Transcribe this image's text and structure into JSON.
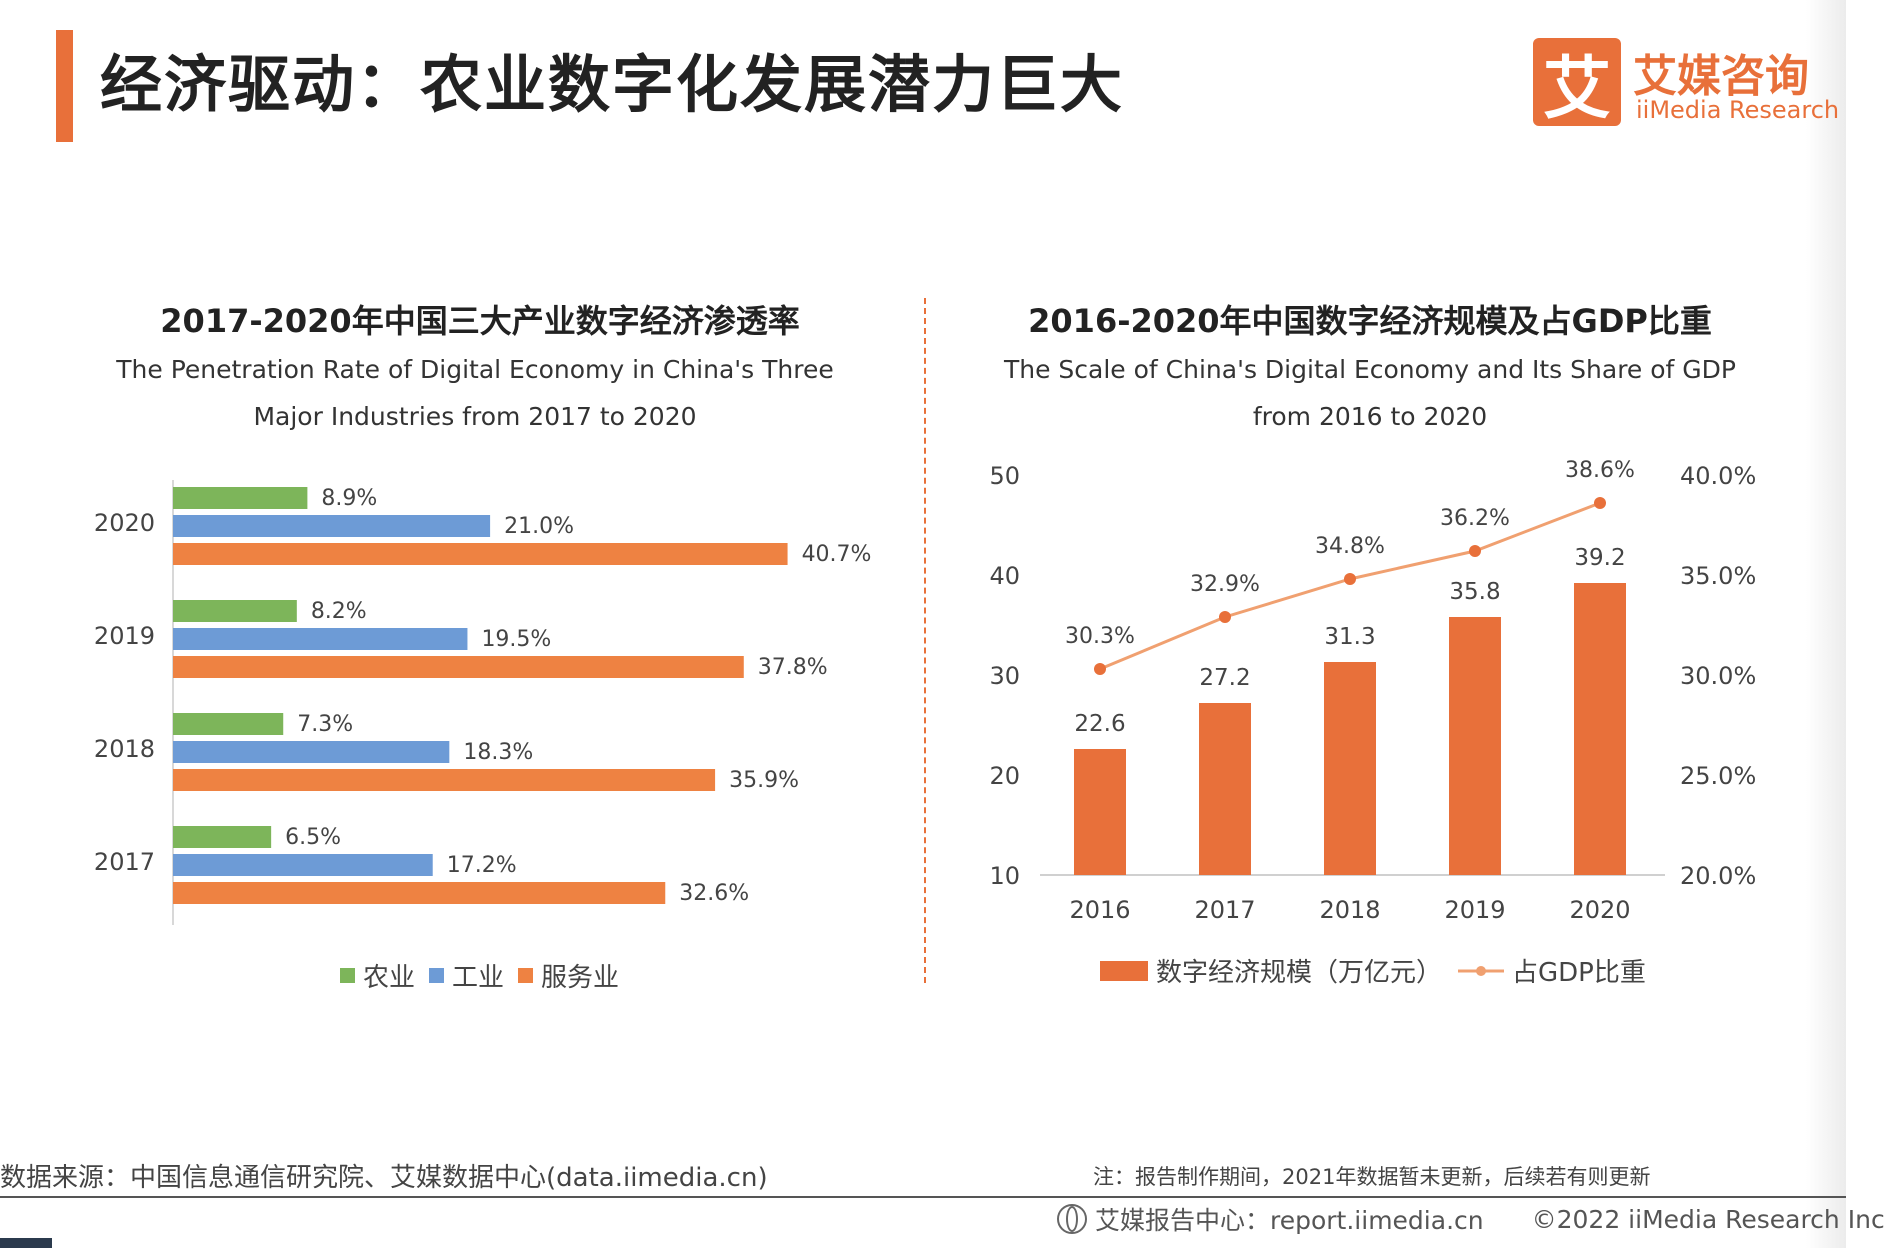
{
  "header": {
    "title": "经济驱动：农业数字化发展潜力巨大",
    "logo_mark": "艾",
    "logo_cn": "艾媒咨询",
    "logo_en": "iiMedia Research",
    "accent": "#e8703a"
  },
  "chart_data": [
    {
      "type": "bar",
      "orientation": "horizontal",
      "title": "2017-2020年中国三大产业数字经济渗透率",
      "subtitle": "The Penetration Rate of Digital Economy in China's Three Major Industries from 2017 to 2020",
      "categories": [
        "2020",
        "2019",
        "2018",
        "2017"
      ],
      "series": [
        {
          "name": "农业",
          "color": "#7db55a",
          "values": [
            8.9,
            8.2,
            7.3,
            6.5
          ],
          "labels": [
            "8.9%",
            "8.2%",
            "7.3%",
            "6.5%"
          ]
        },
        {
          "name": "工业",
          "color": "#6d9bd6",
          "values": [
            21.0,
            19.5,
            18.3,
            17.2
          ],
          "labels": [
            "21.0%",
            "19.5%",
            "18.3%",
            "17.2%"
          ]
        },
        {
          "name": "服务业",
          "color": "#ee8242",
          "values": [
            40.7,
            37.8,
            35.9,
            32.6
          ],
          "labels": [
            "40.7%",
            "37.8%",
            "35.9%",
            "32.6%"
          ]
        }
      ],
      "legend": "bottom"
    },
    {
      "type": "bar+line",
      "title": "2016-2020年中国数字经济规模及占GDP比重",
      "subtitle": "The Scale of China's Digital Economy and Its Share of GDP from 2016 to 2020",
      "categories": [
        "2016",
        "2017",
        "2018",
        "2019",
        "2020"
      ],
      "series": [
        {
          "name": "数字经济规模（万亿元）",
          "type": "bar",
          "color": "#e8703a",
          "values": [
            22.6,
            27.2,
            31.3,
            35.8,
            39.2
          ],
          "labels": [
            "22.6",
            "27.2",
            "31.3",
            "35.8",
            "39.2"
          ]
        },
        {
          "name": "占GDP比重",
          "type": "line",
          "color": "#f0a070",
          "values": [
            30.3,
            32.9,
            34.8,
            36.2,
            38.6
          ],
          "labels": [
            "30.3%",
            "32.9%",
            "34.8%",
            "36.2%",
            "38.6%"
          ]
        }
      ],
      "y_left": {
        "min": 10,
        "max": 50,
        "ticks": [
          "10",
          "20",
          "30",
          "40",
          "50"
        ]
      },
      "y_right": {
        "min": 20,
        "max": 40,
        "ticks": [
          "20.0%",
          "25.0%",
          "30.0%",
          "35.0%",
          "40.0%"
        ]
      },
      "legend": "bottom"
    }
  ],
  "footer": {
    "source": "数据来源：中国信息通信研究院、艾媒数据中心(data.iimedia.cn)",
    "note": "注：报告制作期间，2021年数据暂未更新，后续若有则更新",
    "report_center": "艾媒报告中心：report.iimedia.cn",
    "copyright": "©2022  iiMedia Research  Inc"
  }
}
